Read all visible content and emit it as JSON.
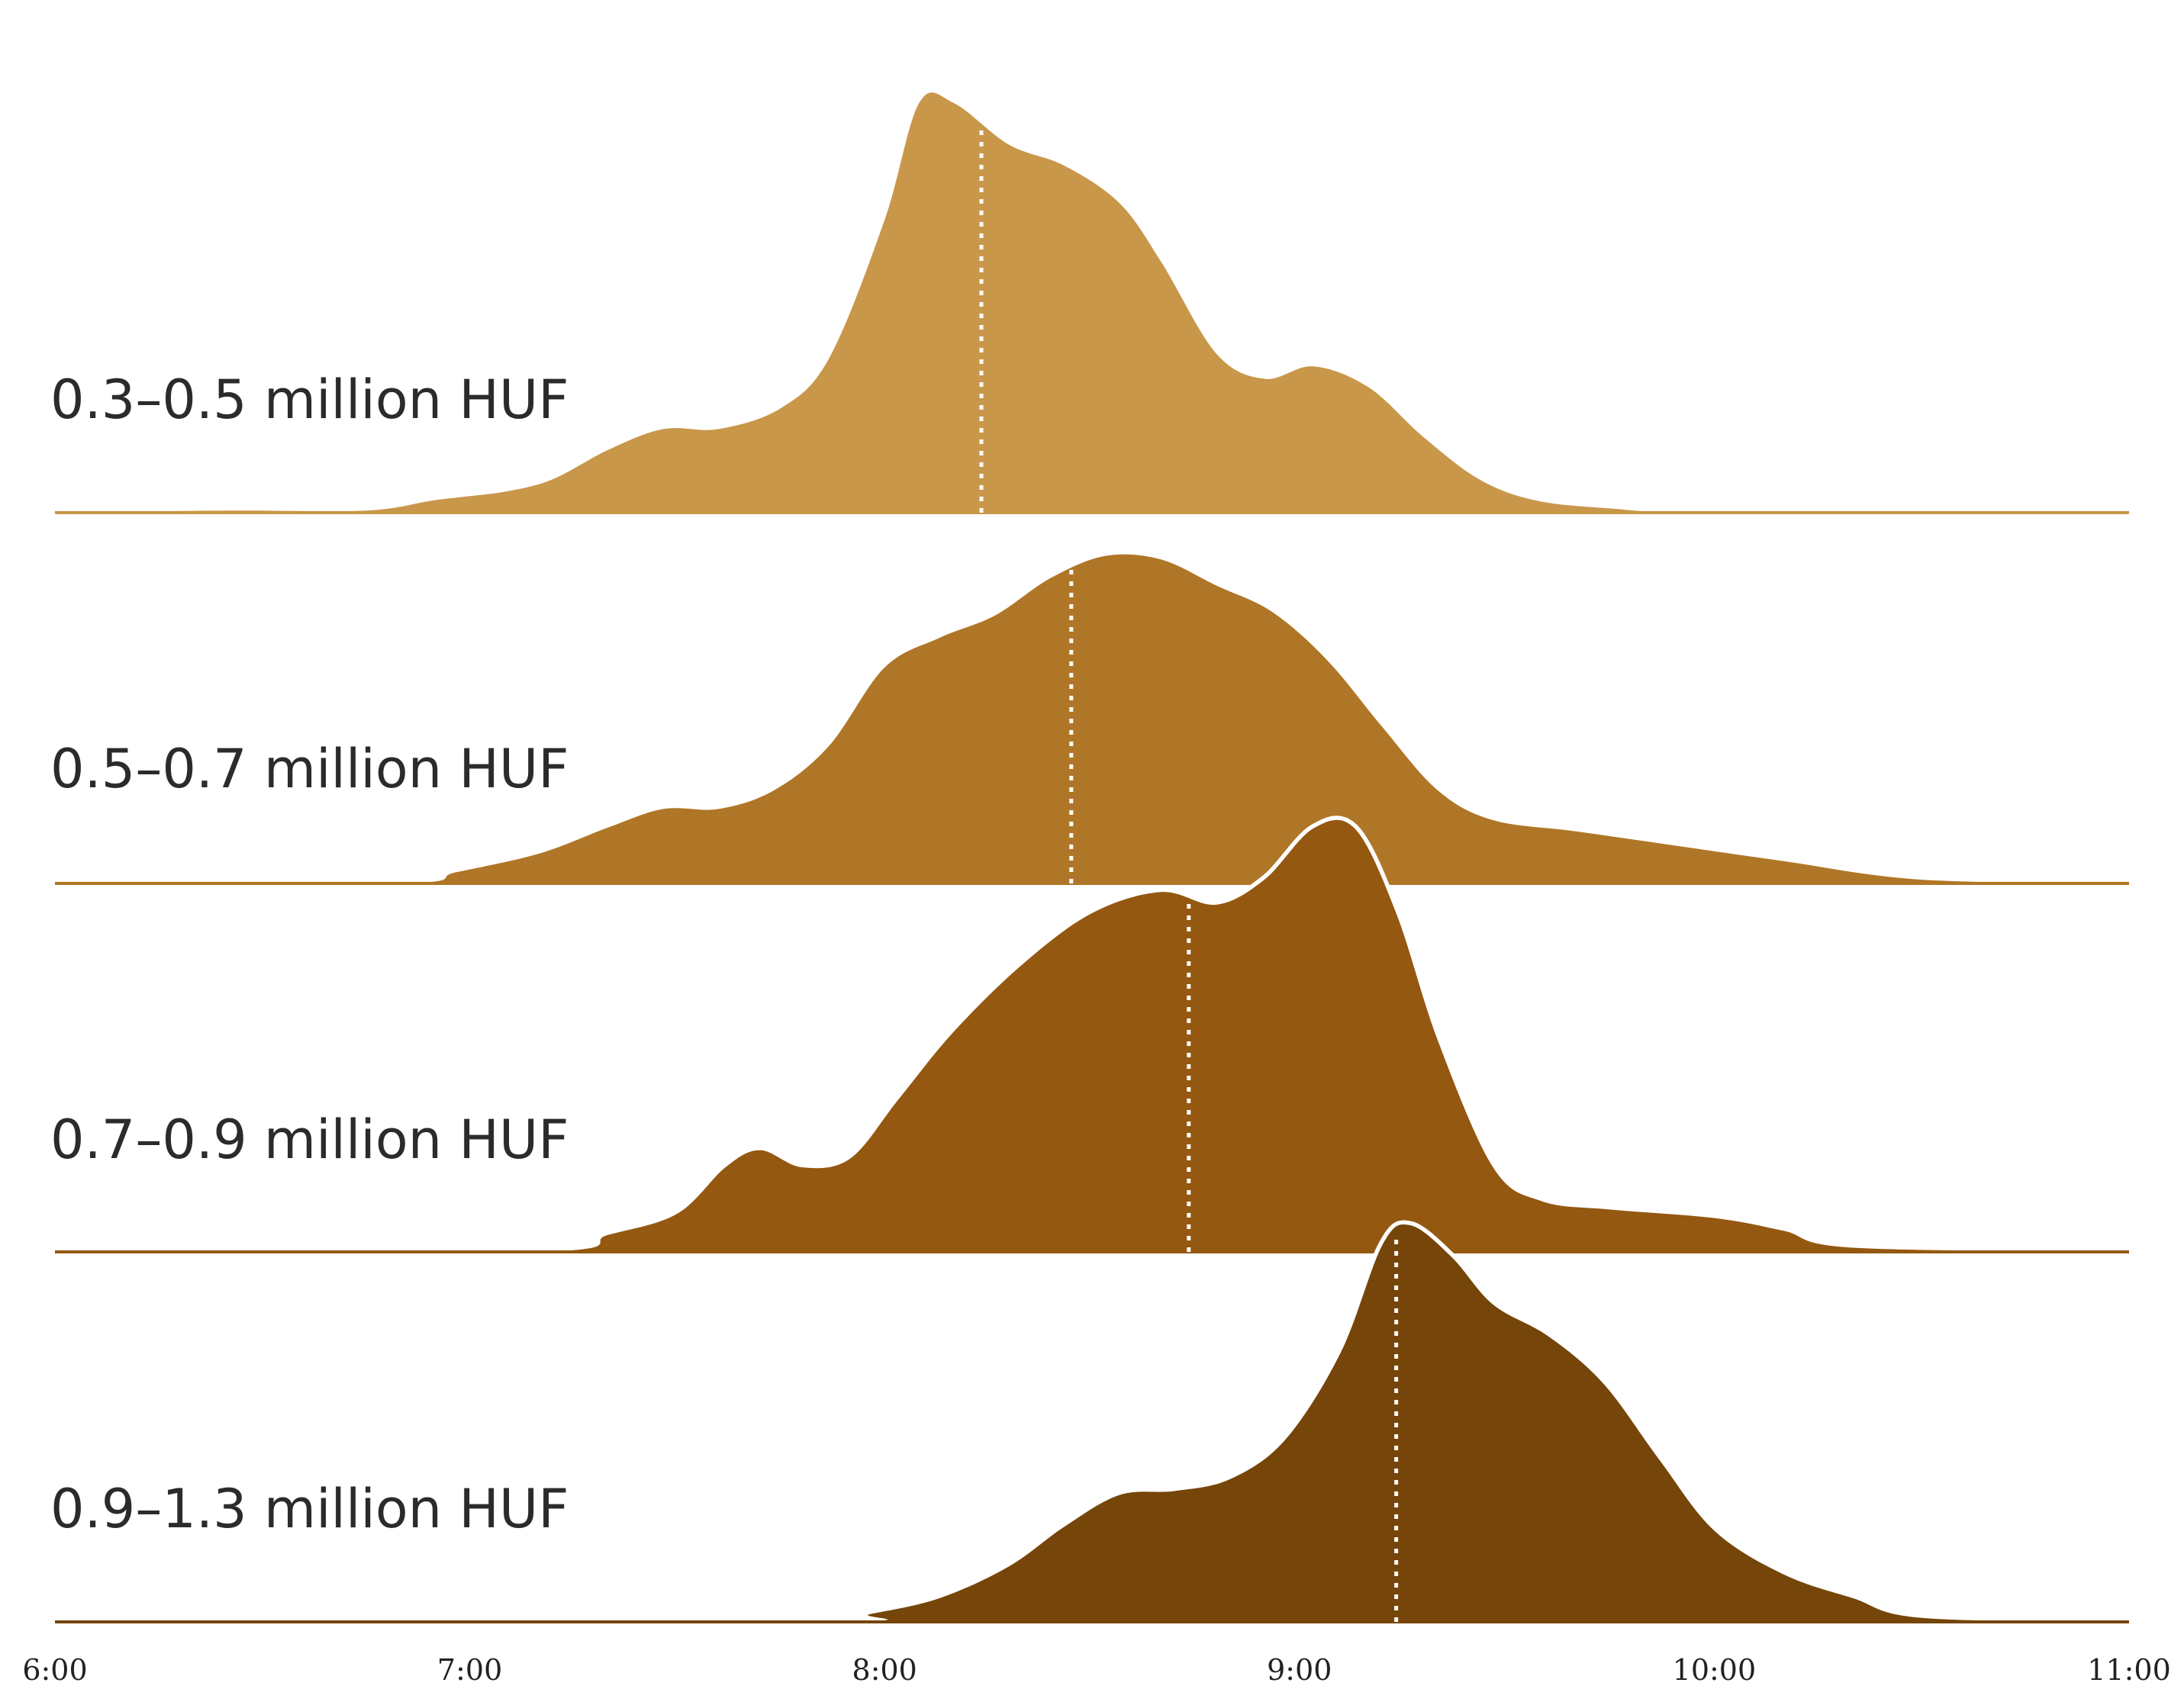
{
  "chart_data": {
    "type": "area",
    "subtype": "ridgeline",
    "title": "",
    "xlabel": "",
    "ylabel": "",
    "xlim": [
      "6:00",
      "11:00"
    ],
    "x_ticks": [
      "6:00",
      "7:00",
      "8:00",
      "9:00",
      "10:00",
      "11:00"
    ],
    "series": [
      {
        "name": "0.3–0.5 million HUF",
        "color": "#c9974a",
        "median": "8:14",
        "points": [
          [
            "6:00",
            0
          ],
          [
            "6:25",
            0.005
          ],
          [
            "6:45",
            0.005
          ],
          [
            "6:55",
            0.03
          ],
          [
            "7:05",
            0.05
          ],
          [
            "7:12",
            0.08
          ],
          [
            "7:20",
            0.15
          ],
          [
            "7:28",
            0.2
          ],
          [
            "7:36",
            0.2
          ],
          [
            "7:45",
            0.25
          ],
          [
            "7:52",
            0.37
          ],
          [
            "8:00",
            0.7
          ],
          [
            "8:05",
            0.98
          ],
          [
            "8:10",
            0.98
          ],
          [
            "8:18",
            0.88
          ],
          [
            "8:26",
            0.83
          ],
          [
            "8:34",
            0.74
          ],
          [
            "8:40",
            0.6
          ],
          [
            "8:48",
            0.38
          ],
          [
            "8:55",
            0.32
          ],
          [
            "9:02",
            0.35
          ],
          [
            "9:10",
            0.3
          ],
          [
            "9:18",
            0.18
          ],
          [
            "9:26",
            0.08
          ],
          [
            "9:34",
            0.03
          ],
          [
            "9:45",
            0.01
          ],
          [
            "10:00",
            0
          ],
          [
            "11:00",
            0
          ]
        ]
      },
      {
        "name": "0.5–0.7 million HUF",
        "color": "#b07627",
        "median": "8:27",
        "points": [
          [
            "6:00",
            0
          ],
          [
            "6:50",
            0
          ],
          [
            "6:58",
            0.03
          ],
          [
            "7:10",
            0.08
          ],
          [
            "7:20",
            0.15
          ],
          [
            "7:28",
            0.2
          ],
          [
            "7:36",
            0.2
          ],
          [
            "7:44",
            0.25
          ],
          [
            "7:52",
            0.37
          ],
          [
            "8:00",
            0.58
          ],
          [
            "8:08",
            0.66
          ],
          [
            "8:16",
            0.72
          ],
          [
            "8:24",
            0.82
          ],
          [
            "8:32",
            0.88
          ],
          [
            "8:40",
            0.87
          ],
          [
            "8:48",
            0.8
          ],
          [
            "8:56",
            0.73
          ],
          [
            "9:04",
            0.6
          ],
          [
            "9:12",
            0.42
          ],
          [
            "9:20",
            0.25
          ],
          [
            "9:28",
            0.17
          ],
          [
            "9:40",
            0.14
          ],
          [
            "9:55",
            0.1
          ],
          [
            "10:10",
            0.06
          ],
          [
            "10:30",
            0.01
          ],
          [
            "11:00",
            0
          ]
        ]
      },
      {
        "name": "0.7–0.9 million HUF",
        "color": "#945811",
        "median": "8:44",
        "points": [
          [
            "6:00",
            0
          ],
          [
            "7:10",
            0
          ],
          [
            "7:20",
            0.04
          ],
          [
            "7:30",
            0.09
          ],
          [
            "7:37",
            0.2
          ],
          [
            "7:42",
            0.24
          ],
          [
            "7:48",
            0.2
          ],
          [
            "7:55",
            0.22
          ],
          [
            "8:02",
            0.36
          ],
          [
            "8:10",
            0.52
          ],
          [
            "8:20",
            0.68
          ],
          [
            "8:30",
            0.8
          ],
          [
            "8:40",
            0.85
          ],
          [
            "8:48",
            0.82
          ],
          [
            "8:55",
            0.88
          ],
          [
            "9:02",
            1.0
          ],
          [
            "9:08",
            1.0
          ],
          [
            "9:14",
            0.8
          ],
          [
            "9:20",
            0.5
          ],
          [
            "9:28",
            0.2
          ],
          [
            "9:35",
            0.12
          ],
          [
            "9:45",
            0.1
          ],
          [
            "10:00",
            0.08
          ],
          [
            "10:10",
            0.05
          ],
          [
            "10:20",
            0.01
          ],
          [
            "11:00",
            0
          ]
        ]
      },
      {
        "name": "0.9–1.3 million HUF",
        "color": "#754509",
        "median": "9:14",
        "points": [
          [
            "6:00",
            0
          ],
          [
            "7:50",
            0
          ],
          [
            "7:58",
            0.02
          ],
          [
            "8:08",
            0.06
          ],
          [
            "8:18",
            0.14
          ],
          [
            "8:26",
            0.24
          ],
          [
            "8:34",
            0.32
          ],
          [
            "8:42",
            0.33
          ],
          [
            "8:50",
            0.36
          ],
          [
            "8:58",
            0.46
          ],
          [
            "9:06",
            0.68
          ],
          [
            "9:12",
            0.95
          ],
          [
            "9:16",
            1.0
          ],
          [
            "9:22",
            0.92
          ],
          [
            "9:28",
            0.8
          ],
          [
            "9:36",
            0.72
          ],
          [
            "9:44",
            0.6
          ],
          [
            "9:52",
            0.41
          ],
          [
            "10:00",
            0.23
          ],
          [
            "10:10",
            0.12
          ],
          [
            "10:20",
            0.06
          ],
          [
            "10:30",
            0.01
          ],
          [
            "11:00",
            0
          ]
        ]
      }
    ]
  }
}
